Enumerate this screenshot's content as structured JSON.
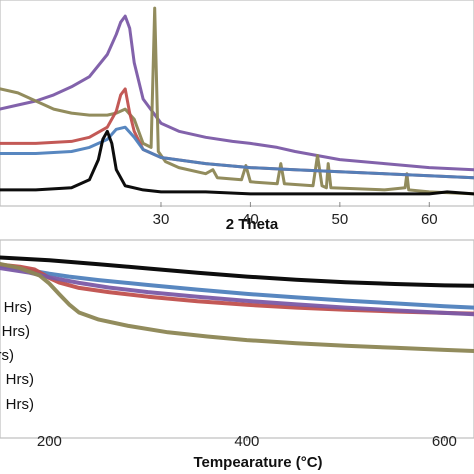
{
  "chart_data": [
    {
      "type": "line",
      "xlabel": "2 Theta",
      "ylabel": "",
      "xlim": [
        12,
        65
      ],
      "ylim": [
        0,
        1
      ],
      "y_ticks_shown": false,
      "x_ticks": [
        30,
        40,
        50,
        60
      ],
      "series": [
        {
          "color": "#7b5aa6",
          "x": [
            12,
            14,
            16,
            18,
            20,
            22,
            24,
            25,
            25.5,
            26,
            26.5,
            27,
            28,
            30,
            32,
            35,
            38,
            40,
            43,
            45,
            50,
            55,
            60,
            65
          ],
          "y": [
            0.47,
            0.49,
            0.51,
            0.54,
            0.58,
            0.63,
            0.74,
            0.84,
            0.9,
            0.93,
            0.87,
            0.7,
            0.52,
            0.4,
            0.36,
            0.33,
            0.31,
            0.3,
            0.28,
            0.26,
            0.22,
            0.2,
            0.18,
            0.17
          ]
        },
        {
          "color": "#8c8654",
          "x": [
            12,
            14,
            16,
            18,
            20,
            22,
            24,
            25,
            26,
            27,
            28,
            28.9,
            29.3,
            29.7,
            30.5,
            32,
            35,
            35.8,
            36.3,
            39,
            39.5,
            40,
            43,
            43.4,
            43.8,
            47,
            47.5,
            48,
            48.5,
            48.7,
            49,
            55,
            57.3,
            57.5,
            57.7,
            60,
            65
          ],
          "y": [
            0.57,
            0.55,
            0.51,
            0.47,
            0.45,
            0.44,
            0.44,
            0.45,
            0.47,
            0.42,
            0.3,
            0.28,
            0.97,
            0.26,
            0.21,
            0.18,
            0.15,
            0.17,
            0.13,
            0.12,
            0.19,
            0.11,
            0.1,
            0.2,
            0.1,
            0.09,
            0.24,
            0.09,
            0.08,
            0.2,
            0.08,
            0.07,
            0.08,
            0.15,
            0.07,
            0.06,
            0.05
          ]
        },
        {
          "color": "#c0504d",
          "x": [
            12,
            16,
            20,
            22,
            24,
            25,
            25.5,
            26,
            26.5,
            27,
            28,
            30,
            35,
            40,
            45,
            50,
            55,
            60,
            65
          ],
          "y": [
            0.3,
            0.3,
            0.31,
            0.33,
            0.38,
            0.46,
            0.54,
            0.57,
            0.45,
            0.36,
            0.27,
            0.23,
            0.2,
            0.18,
            0.17,
            0.16,
            0.15,
            0.14,
            0.13
          ]
        },
        {
          "color": "#4f81bd",
          "x": [
            12,
            16,
            20,
            22,
            24,
            25,
            26,
            27,
            28,
            30,
            35,
            40,
            45,
            50,
            55,
            60,
            65
          ],
          "y": [
            0.25,
            0.25,
            0.26,
            0.28,
            0.32,
            0.37,
            0.38,
            0.33,
            0.27,
            0.23,
            0.2,
            0.18,
            0.17,
            0.16,
            0.15,
            0.14,
            0.13
          ]
        },
        {
          "color": "#000000",
          "x": [
            12,
            16,
            20,
            22,
            23,
            23.5,
            24,
            24.5,
            25,
            26,
            28,
            30,
            35,
            40,
            45,
            50,
            55,
            60,
            62,
            65
          ],
          "y": [
            0.07,
            0.07,
            0.08,
            0.12,
            0.22,
            0.32,
            0.36,
            0.3,
            0.17,
            0.09,
            0.07,
            0.06,
            0.06,
            0.05,
            0.05,
            0.05,
            0.05,
            0.05,
            0.06,
            0.05
          ]
        }
      ]
    },
    {
      "type": "line",
      "xlabel": "Tempearature (°C)",
      "ylabel": "",
      "xlim": [
        150,
        630
      ],
      "ylim": [
        50,
        105
      ],
      "y_ticks_shown": false,
      "x_ticks": [
        200,
        400,
        600
      ],
      "legend_position": "left",
      "legend_labels_visible": [
        "Hrs)",
        "Hrs)",
        "rs)",
        "Hrs)",
        "Hrs)"
      ],
      "series": [
        {
          "color": "#000000",
          "x": [
            150,
            200,
            250,
            300,
            350,
            400,
            450,
            500,
            550,
            600,
            630
          ],
          "y": [
            100.6,
            99.8,
            98.7,
            97.5,
            96.3,
            95.2,
            94.3,
            93.6,
            93.1,
            92.7,
            92.6
          ]
        },
        {
          "color": "#4f81bd",
          "x": [
            150,
            180,
            200,
            220,
            250,
            300,
            350,
            400,
            450,
            500,
            550,
            600,
            630
          ],
          "y": [
            98.2,
            97.0,
            96.0,
            95.2,
            94.2,
            92.8,
            91.5,
            90.3,
            89.3,
            88.4,
            87.6,
            86.8,
            86.4
          ]
        },
        {
          "color": "#c0504d",
          "x": [
            150,
            170,
            185,
            200,
            210,
            230,
            260,
            300,
            350,
            400,
            450,
            500,
            550,
            600,
            630
          ],
          "y": [
            98.6,
            98.0,
            97.2,
            94.8,
            93.5,
            92.0,
            90.8,
            89.5,
            88.2,
            87.2,
            86.4,
            85.8,
            85.3,
            84.9,
            84.7
          ]
        },
        {
          "color": "#7b5aa6",
          "x": [
            150,
            180,
            200,
            230,
            260,
            300,
            350,
            400,
            450,
            500,
            550,
            600,
            630
          ],
          "y": [
            97.6,
            96.3,
            95.0,
            93.4,
            92.1,
            90.8,
            89.5,
            88.3,
            87.3,
            86.4,
            85.6,
            84.9,
            84.5
          ]
        },
        {
          "color": "#8c8654",
          "x": [
            150,
            170,
            190,
            200,
            210,
            220,
            230,
            250,
            280,
            320,
            360,
            400,
            450,
            500,
            550,
            600,
            630
          ],
          "y": [
            98.8,
            97.6,
            95.5,
            93.2,
            90.2,
            87.3,
            85.0,
            83.0,
            81.2,
            79.4,
            78.2,
            77.2,
            76.3,
            75.6,
            75.0,
            74.4,
            74.1
          ]
        }
      ]
    }
  ]
}
